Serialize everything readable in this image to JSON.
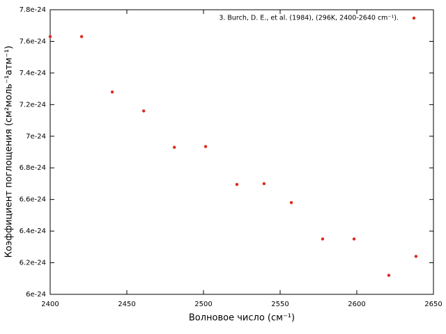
{
  "chart_data": {
    "type": "scatter",
    "x_label": "Волновое число (см⁻¹)",
    "y_label": "Коэффициент поглощения (см²моль⁻¹атм⁻¹)",
    "xlim": [
      2400,
      2650
    ],
    "xticks": [
      2400,
      2450,
      2500,
      2550,
      2600,
      2650
    ],
    "ylim": [
      6e-24,
      7.8e-24
    ],
    "yticks": [
      6e-24,
      6.2e-24,
      6.4e-24,
      6.6e-24,
      6.8e-24,
      7e-24,
      7.2e-24,
      7.4e-24,
      7.6e-24,
      7.8e-24
    ],
    "legend": "top-right",
    "series": [
      {
        "name": "3. Burch, D. E., et al. (1984), (296K, 2400-2640 cm⁻¹).",
        "color": "#dd2a1c",
        "x": [
          2400,
          2420.5,
          2440.5,
          2461,
          2481,
          2501.4,
          2521.8,
          2539.5,
          2557.3,
          2577.7,
          2598.2,
          2620.9,
          2638.6
        ],
        "values": [
          7.63e-24,
          7.63e-24,
          7.28e-24,
          7.16e-24,
          6.93e-24,
          6.935e-24,
          6.695e-24,
          6.7e-24,
          6.58e-24,
          6.35e-24,
          6.35e-24,
          6.12e-24,
          6.24e-24
        ]
      }
    ]
  }
}
